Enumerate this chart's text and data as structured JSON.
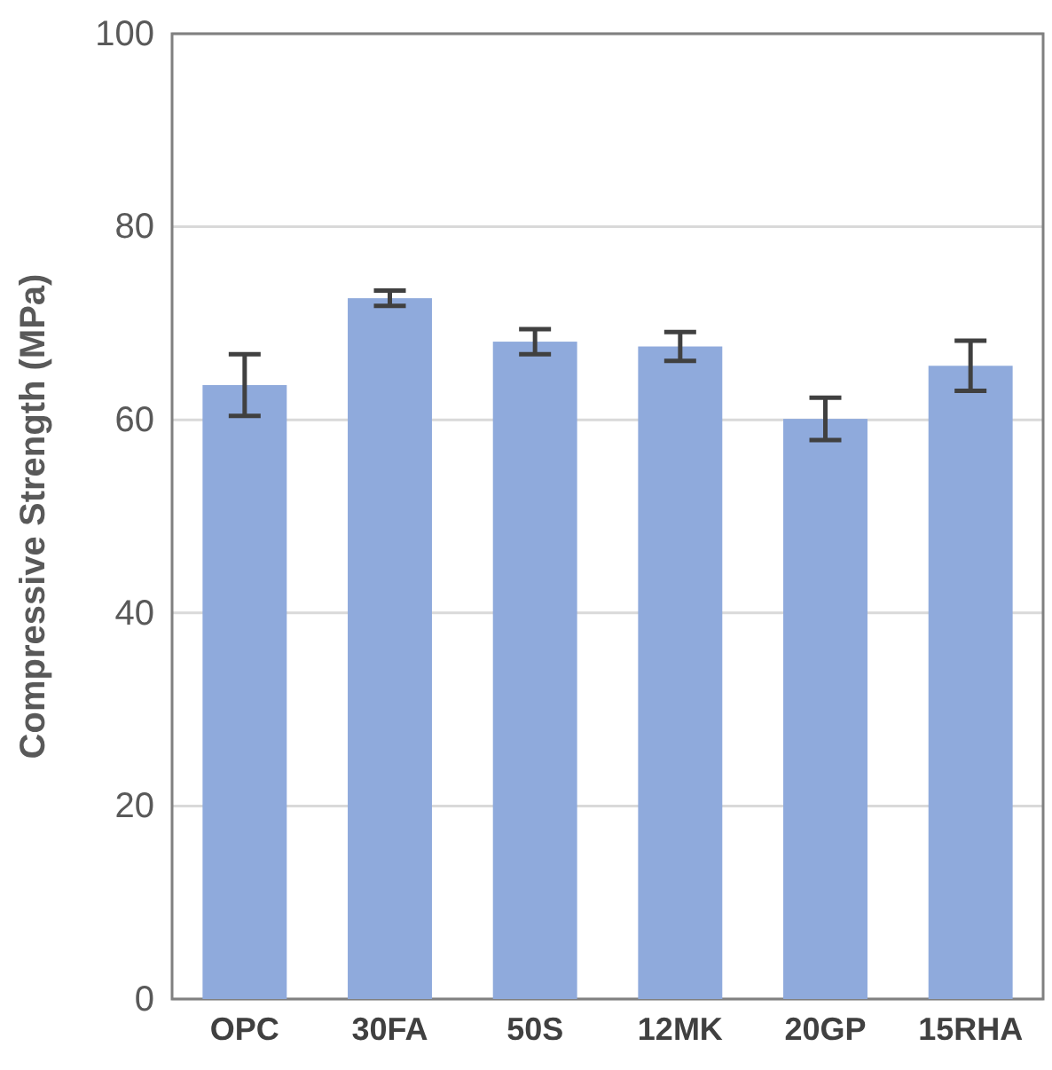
{
  "chart_data": {
    "type": "bar",
    "ylabel": "Compressive Strength (MPa)",
    "categories": [
      "OPC",
      "30FA",
      "50S",
      "12MK",
      "20GP",
      "15RHA"
    ],
    "values": [
      63.6,
      72.6,
      68.1,
      67.6,
      60.1,
      65.6
    ],
    "errors": [
      3.2,
      0.8,
      1.3,
      1.5,
      2.2,
      2.6
    ],
    "color": "#8faadc",
    "ylim": [
      0,
      100
    ],
    "yticks": [
      0,
      20,
      40,
      60,
      80,
      100
    ],
    "grid": "y"
  }
}
